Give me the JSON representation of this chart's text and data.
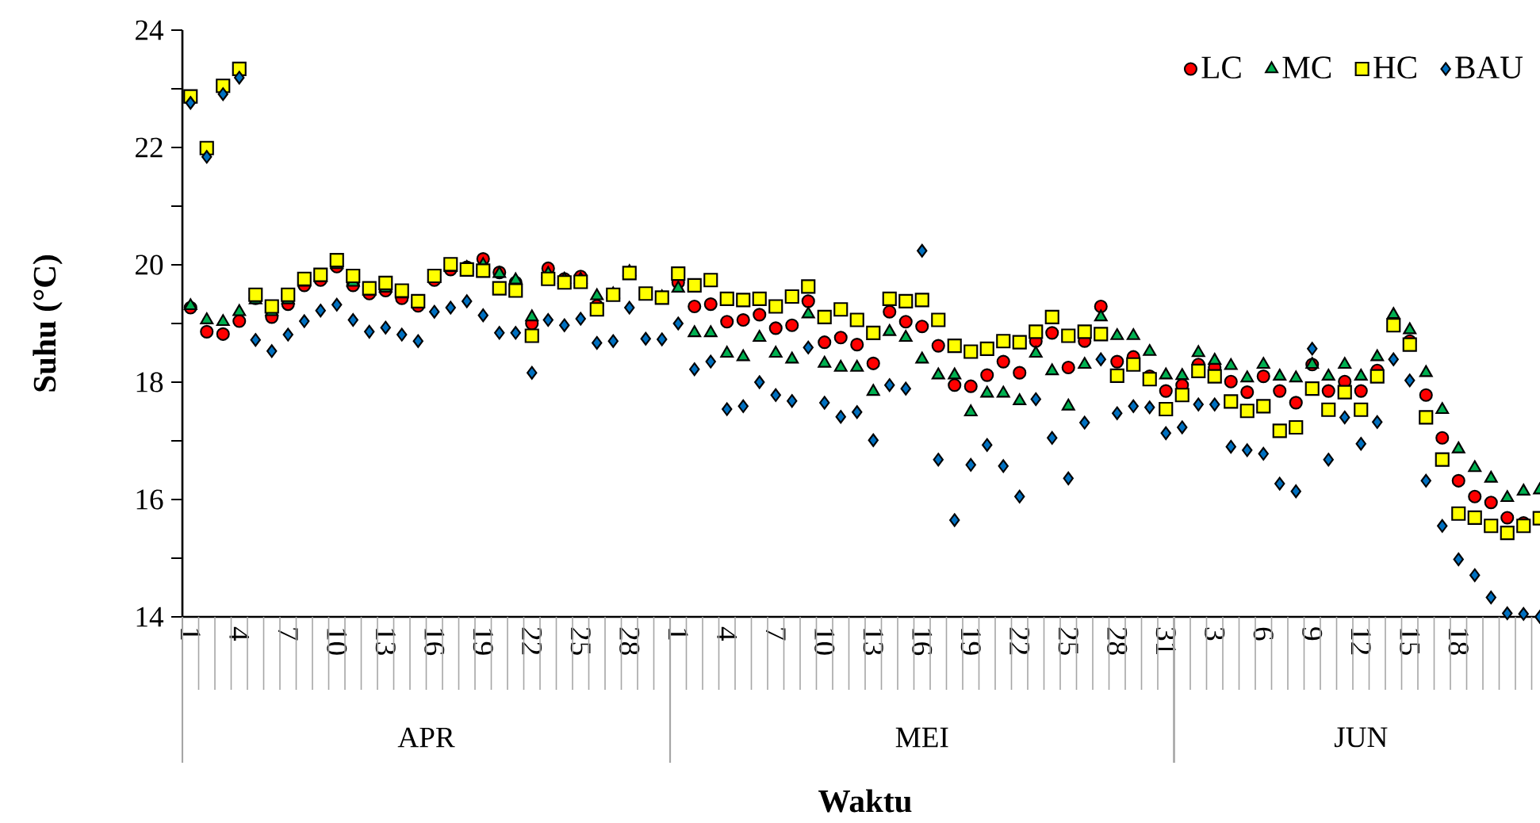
{
  "chart_data": {
    "type": "scatter",
    "xlabel": "Waktu",
    "ylabel": "Suhu (°C)",
    "categories": [
      "1",
      null,
      null,
      "4",
      null,
      null,
      "7",
      null,
      null,
      "10",
      null,
      null,
      "13",
      null,
      null,
      "16",
      null,
      null,
      "19",
      null,
      null,
      "22",
      null,
      null,
      "25",
      null,
      null,
      "28",
      null,
      null,
      "1",
      null,
      null,
      "4",
      null,
      null,
      "7",
      null,
      null,
      "10",
      null,
      null,
      "13",
      null,
      null,
      "16",
      null,
      null,
      "19",
      null,
      null,
      "22",
      null,
      null,
      "25",
      null,
      null,
      "28",
      null,
      null,
      "31",
      null,
      null,
      "3",
      null,
      null,
      "6",
      null,
      null,
      "9",
      null,
      null,
      "12",
      null,
      null,
      "15",
      null,
      null,
      "18",
      null,
      null,
      null,
      null,
      null
    ],
    "annotations": [
      "APR",
      "MEI",
      "JUN"
    ],
    "ylim": [
      14,
      24
    ],
    "yticks": [
      14,
      16,
      18,
      20,
      22,
      24
    ],
    "legend": "top right",
    "series": [
      {
        "name": "LC",
        "color": "#ff0000",
        "marker": "circle",
        "values": [
          19.27,
          18.86,
          18.82,
          19.04,
          19.43,
          19.11,
          19.33,
          19.65,
          19.74,
          19.97,
          19.65,
          19.51,
          19.56,
          19.43,
          19.3,
          19.74,
          19.92,
          19.96,
          20.1,
          19.87,
          19.7,
          19.0,
          19.94,
          19.76,
          19.8,
          19.3,
          null,
          null,
          null,
          null,
          19.7,
          19.29,
          19.33,
          19.03,
          19.06,
          19.15,
          18.92,
          18.97,
          19.38,
          18.68,
          18.76,
          18.64,
          18.32,
          19.2,
          19.03,
          18.95,
          18.62,
          17.95,
          17.93,
          18.12,
          18.35,
          18.16,
          18.7,
          18.84,
          18.25,
          18.7,
          19.29,
          18.35,
          18.43,
          18.1,
          17.85,
          17.95,
          18.3,
          18.25,
          18.01,
          17.83,
          18.1,
          17.85,
          17.65,
          18.3,
          17.85,
          18.01,
          17.85,
          18.2,
          null,
          18.7,
          17.78,
          17.05,
          16.32,
          16.05,
          15.95,
          15.69,
          15.6,
          null
        ]
      },
      {
        "name": "MC",
        "color": "#00b050",
        "marker": "triangle",
        "values": [
          19.3,
          19.06,
          19.03,
          19.2,
          19.4,
          19.2,
          19.4,
          19.7,
          19.78,
          20.0,
          19.7,
          19.55,
          19.6,
          19.5,
          null,
          null,
          19.95,
          19.95,
          20.0,
          19.85,
          19.74,
          19.11,
          19.85,
          19.75,
          19.75,
          19.47,
          19.5,
          19.88,
          null,
          19.45,
          19.6,
          18.84,
          18.84,
          18.49,
          18.43,
          18.76,
          18.49,
          18.39,
          19.16,
          18.32,
          18.25,
          18.25,
          17.84,
          18.86,
          18.76,
          18.39,
          18.12,
          18.12,
          17.49,
          17.81,
          17.81,
          17.68,
          18.49,
          18.19,
          17.59,
          18.3,
          19.11,
          18.79,
          18.79,
          18.52,
          18.12,
          18.11,
          18.5,
          18.37,
          18.28,
          18.07,
          18.3,
          18.1,
          18.07,
          18.3,
          18.1,
          18.3,
          18.1,
          18.43,
          19.15,
          18.89,
          18.16,
          17.53,
          16.86,
          16.54,
          16.36,
          16.03,
          16.14,
          16.16
        ]
      },
      {
        "name": "HC",
        "color": "#ffff00",
        "marker": "square",
        "values": [
          22.87,
          21.99,
          23.05,
          23.34,
          19.49,
          19.29,
          19.49,
          19.76,
          19.83,
          20.08,
          19.81,
          19.6,
          19.69,
          19.56,
          19.38,
          19.81,
          20.01,
          19.92,
          19.9,
          19.6,
          19.56,
          18.79,
          19.76,
          19.7,
          19.71,
          19.24,
          19.49,
          19.86,
          19.51,
          19.44,
          19.85,
          19.65,
          19.74,
          19.42,
          19.4,
          19.42,
          19.29,
          19.46,
          19.63,
          19.11,
          19.24,
          19.06,
          18.84,
          19.42,
          19.38,
          19.4,
          19.06,
          18.62,
          18.52,
          18.57,
          18.7,
          18.68,
          18.86,
          19.11,
          18.79,
          18.86,
          18.82,
          18.11,
          18.3,
          18.05,
          17.54,
          17.78,
          18.19,
          18.1,
          17.67,
          17.51,
          17.59,
          17.17,
          17.23,
          17.89,
          17.53,
          17.83,
          17.53,
          18.1,
          18.97,
          18.64,
          17.4,
          16.68,
          15.76,
          15.69,
          15.55,
          15.43,
          15.55,
          15.68
        ]
      },
      {
        "name": "BAU",
        "color": "#0070c0",
        "marker": "diamond",
        "values": [
          22.76,
          21.84,
          22.91,
          23.19,
          18.72,
          18.53,
          18.81,
          19.04,
          19.22,
          19.32,
          19.06,
          18.86,
          18.93,
          18.81,
          18.7,
          19.2,
          19.27,
          19.38,
          19.14,
          18.84,
          18.84,
          18.16,
          19.06,
          18.97,
          19.08,
          18.67,
          18.7,
          19.27,
          18.74,
          18.73,
          19.0,
          18.22,
          18.35,
          17.54,
          17.59,
          18.0,
          17.78,
          17.68,
          18.59,
          17.65,
          17.41,
          17.49,
          17.01,
          17.95,
          17.89,
          20.24,
          16.68,
          15.65,
          16.59,
          16.93,
          16.57,
          16.05,
          17.71,
          17.05,
          16.36,
          17.31,
          18.39,
          17.47,
          17.59,
          17.57,
          17.13,
          17.23,
          17.62,
          17.62,
          16.9,
          16.84,
          16.78,
          16.27,
          16.14,
          18.57,
          16.68,
          17.4,
          16.95,
          17.32,
          18.39,
          18.03,
          16.32,
          15.55,
          14.98,
          14.71,
          14.33,
          14.06,
          14.05,
          14.0
        ]
      }
    ]
  }
}
